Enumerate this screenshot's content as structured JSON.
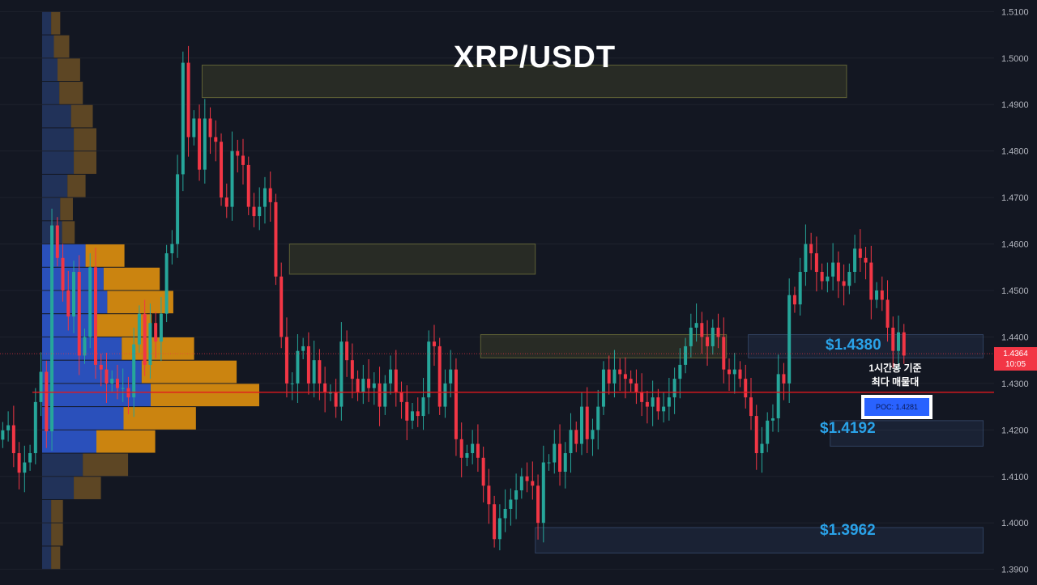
{
  "chart_data": {
    "type": "candlestick",
    "title": "XRP/USDT",
    "ylim": [
      1.3875,
      1.5125
    ],
    "y_ticks": [
      "1.5100",
      "1.5000",
      "1.4900",
      "1.4800",
      "1.4700",
      "1.4600",
      "1.4500",
      "1.4400",
      "1.4300",
      "1.4200",
      "1.4100",
      "1.4000",
      "1.3900"
    ],
    "current_price": "1.4364",
    "countdown": "10:05",
    "poc_line": 1.4281,
    "poc_label": "POC: 1.4281",
    "annotation": [
      "1시간봉 기준",
      "최다 매물대"
    ],
    "levels": [
      {
        "label": "$1.4380",
        "price": 1.438
      },
      {
        "label": "$1.4192",
        "price": 1.4192
      },
      {
        "label": "$1.3962",
        "price": 1.3962
      }
    ],
    "zones": [
      {
        "start": 37,
        "end": 155,
        "top": 1.4985,
        "bottom": 1.4915,
        "kind": "supply"
      },
      {
        "start": 53,
        "end": 98,
        "top": 1.46,
        "bottom": 1.4535,
        "kind": "supply"
      },
      {
        "start": 88,
        "end": 133,
        "top": 1.4405,
        "bottom": 1.4355,
        "kind": "supply"
      },
      {
        "start": 137,
        "end": 180,
        "top": 1.4405,
        "bottom": 1.4355,
        "kind": "demand"
      },
      {
        "start": 152,
        "end": 180,
        "top": 1.422,
        "bottom": 1.4165,
        "kind": "demand"
      },
      {
        "start": 98,
        "end": 180,
        "top": 1.399,
        "bottom": 1.3935,
        "kind": "demand"
      }
    ],
    "volume_profile": [
      {
        "price": 1.5075,
        "buy": 0.1,
        "sell": 0.1
      },
      {
        "price": 1.5025,
        "buy": 0.13,
        "sell": 0.17
      },
      {
        "price": 1.4975,
        "buy": 0.17,
        "sell": 0.25
      },
      {
        "price": 1.4925,
        "buy": 0.19,
        "sell": 0.26
      },
      {
        "price": 1.4875,
        "buy": 0.32,
        "sell": 0.24
      },
      {
        "price": 1.4825,
        "buy": 0.35,
        "sell": 0.25
      },
      {
        "price": 1.4775,
        "buy": 0.35,
        "sell": 0.25
      },
      {
        "price": 1.4725,
        "buy": 0.28,
        "sell": 0.2
      },
      {
        "price": 1.4675,
        "buy": 0.2,
        "sell": 0.14
      },
      {
        "price": 1.4625,
        "buy": 0.22,
        "sell": 0.14
      },
      {
        "price": 1.4575,
        "buy": 0.48,
        "sell": 0.43
      },
      {
        "price": 1.4525,
        "buy": 0.68,
        "sell": 0.62
      },
      {
        "price": 1.4475,
        "buy": 0.72,
        "sell": 0.73
      },
      {
        "price": 1.4425,
        "buy": 0.58,
        "sell": 0.63
      },
      {
        "price": 1.4375,
        "buy": 0.88,
        "sell": 0.8
      },
      {
        "price": 1.4325,
        "buy": 1.1,
        "sell": 1.05
      },
      {
        "price": 1.4275,
        "buy": 1.2,
        "sell": 1.2
      },
      {
        "price": 1.4225,
        "buy": 0.9,
        "sell": 0.8
      },
      {
        "price": 1.4175,
        "buy": 0.6,
        "sell": 0.65
      },
      {
        "price": 1.4125,
        "buy": 0.45,
        "sell": 0.5
      },
      {
        "price": 1.4075,
        "buy": 0.35,
        "sell": 0.3
      },
      {
        "price": 1.4025,
        "buy": 0.1,
        "sell": 0.13
      },
      {
        "price": 1.3975,
        "buy": 0.1,
        "sell": 0.13
      },
      {
        "price": 1.3925,
        "buy": 0.1,
        "sell": 0.1
      }
    ],
    "close": [
      1.4199,
      1.421,
      1.415,
      1.4108,
      1.413,
      1.415,
      1.426,
      1.4325,
      1.4197,
      1.464,
      1.457,
      1.45,
      1.4444,
      1.454,
      1.436,
      1.44,
      1.455,
      1.434,
      1.433,
      1.43,
      1.431,
      1.429,
      1.429,
      1.427,
      1.4384,
      1.445,
      1.434,
      1.443,
      1.439,
      1.445,
      1.458,
      1.46,
      1.475,
      1.499,
      1.483,
      1.487,
      1.476,
      1.487,
      1.483,
      1.482,
      1.47,
      1.468,
      1.48,
      1.479,
      1.477,
      1.468,
      1.466,
      1.468,
      1.472,
      1.469,
      1.453,
      1.44,
      1.43,
      1.43,
      1.437,
      1.438,
      1.43,
      1.435,
      1.43,
      1.428,
      1.428,
      1.425,
      1.439,
      1.435,
      1.431,
      1.428,
      1.431,
      1.429,
      1.43,
      1.425,
      1.43,
      1.433,
      1.428,
      1.426,
      1.422,
      1.424,
      1.423,
      1.427,
      1.439,
      1.438,
      1.425,
      1.43,
      1.433,
      1.418,
      1.414,
      1.415,
      1.417,
      1.414,
      1.408,
      1.404,
      1.3965,
      1.401,
      1.403,
      1.405,
      1.407,
      1.41,
      1.409,
      1.408,
      1.4,
      1.413,
      1.413,
      1.417,
      1.411,
      1.415,
      1.42,
      1.417,
      1.425,
      1.418,
      1.42,
      1.425,
      1.433,
      1.43,
      1.433,
      1.432,
      1.431,
      1.43,
      1.428,
      1.426,
      1.425,
      1.427,
      1.424,
      1.425,
      1.427,
      1.431,
      1.434,
      1.438,
      1.442,
      1.443,
      1.44,
      1.438,
      1.442,
      1.44,
      1.433,
      1.432,
      1.433,
      1.431,
      1.427,
      1.423,
      1.415,
      1.417,
      1.422,
      1.4225,
      1.432,
      1.43,
      1.449,
      1.447,
      1.454,
      1.46,
      1.458,
      1.454,
      1.452,
      1.453,
      1.456,
      1.452,
      1.451,
      1.454,
      1.459,
      1.457,
      1.456,
      1.448,
      1.45,
      1.448,
      1.442,
      1.437,
      1.441,
      1.436
    ],
    "x_range": [
      0,
      182
    ]
  }
}
